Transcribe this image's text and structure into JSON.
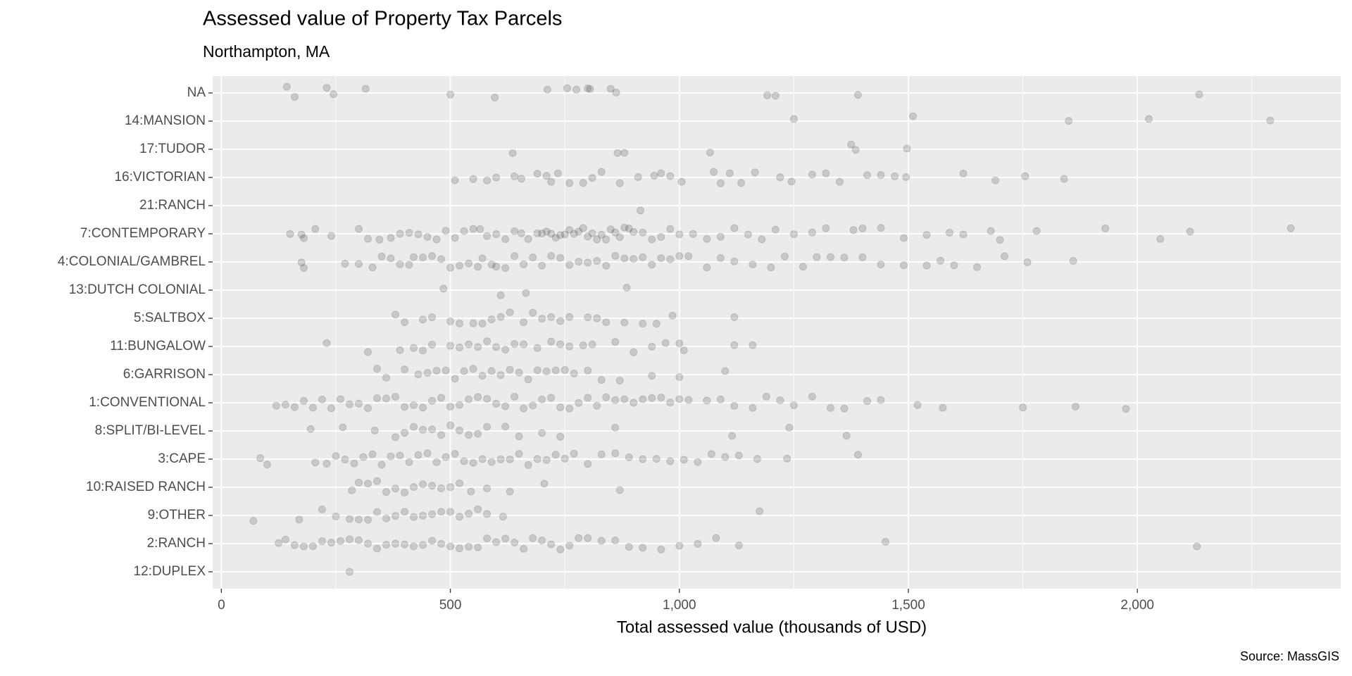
{
  "chart_data": {
    "type": "strip",
    "title": "Assessed value of Property Tax Parcels",
    "subtitle": "Northampton, MA",
    "x_label": "Total assessed value (thousands of USD)",
    "caption": "Source: MassGIS",
    "color": "#000000",
    "opacity": 0.15,
    "grid": true,
    "xlim": [
      -19,
      2444
    ],
    "xticks": [
      0,
      500,
      {
        "value": 1000,
        "label": "1,000"
      },
      {
        "value": 1500,
        "label": "1,500"
      },
      {
        "value": 2000,
        "label": "2,000"
      }
    ],
    "minor_xticks": [
      250,
      750,
      1250,
      1750,
      2250
    ],
    "categories": [
      "NA",
      "14:MANSION",
      "17:TUDOR",
      "16:VICTORIAN",
      "21:RANCH",
      "7:CONTEMPORARY",
      "4:COLONIAL/GAMBREL",
      "13:DUTCH COLONIAL",
      "5:SALTBOX",
      "11:BUNGALOW",
      "6:GARRISON",
      "1:CONVENTIONAL",
      "8:SPLIT/BI-LEVEL",
      "3:CAPE",
      "10:RAISED RANCH",
      "9:OTHER",
      "2:RANCH",
      "12:DUPLEX"
    ],
    "values": [
      [
        143,
        160,
        230,
        245,
        315,
        500,
        597,
        712,
        755,
        775,
        800,
        805,
        850,
        862,
        1192,
        1210,
        1390,
        2135
      ],
      [
        1250,
        1510,
        1850,
        2025,
        2290
      ],
      [
        636,
        865,
        880,
        1067,
        1375,
        1385,
        1497
      ],
      [
        510,
        550,
        580,
        600,
        640,
        655,
        690,
        710,
        720,
        735,
        760,
        790,
        810,
        830,
        870,
        910,
        945,
        960,
        980,
        1005,
        1075,
        1090,
        1110,
        1135,
        1165,
        1220,
        1245,
        1290,
        1320,
        1350,
        1410,
        1440,
        1470,
        1495,
        1620,
        1690,
        1755,
        1840
      ],
      [
        915
      ],
      [
        150,
        175,
        180,
        205,
        240,
        300,
        320,
        345,
        370,
        390,
        410,
        430,
        450,
        470,
        490,
        510,
        530,
        550,
        565,
        580,
        600,
        620,
        640,
        655,
        670,
        690,
        700,
        710,
        720,
        730,
        740,
        750,
        760,
        770,
        780,
        790,
        800,
        810,
        820,
        830,
        840,
        850,
        860,
        870,
        880,
        890,
        900,
        920,
        940,
        960,
        980,
        1000,
        1030,
        1060,
        1090,
        1120,
        1150,
        1180,
        1210,
        1250,
        1290,
        1320,
        1380,
        1400,
        1440,
        1490,
        1540,
        1590,
        1620,
        1680,
        1700,
        1780,
        1930,
        2050,
        2115,
        2335
      ],
      [
        175,
        180,
        270,
        300,
        330,
        350,
        370,
        390,
        410,
        420,
        440,
        460,
        480,
        500,
        520,
        540,
        560,
        570,
        590,
        600,
        620,
        640,
        660,
        680,
        700,
        720,
        740,
        760,
        780,
        800,
        820,
        840,
        860,
        880,
        900,
        920,
        940,
        960,
        980,
        1000,
        1020,
        1060,
        1090,
        1120,
        1160,
        1200,
        1230,
        1270,
        1300,
        1330,
        1360,
        1400,
        1440,
        1490,
        1540,
        1570,
        1600,
        1650,
        1710,
        1760,
        1860
      ],
      [
        485,
        610,
        665,
        885
      ],
      [
        380,
        400,
        440,
        460,
        500,
        520,
        550,
        570,
        590,
        610,
        630,
        660,
        680,
        700,
        720,
        740,
        760,
        800,
        820,
        840,
        880,
        920,
        950,
        985,
        1120
      ],
      [
        230,
        320,
        390,
        420,
        440,
        460,
        500,
        520,
        540,
        560,
        580,
        600,
        620,
        640,
        660,
        690,
        720,
        740,
        760,
        790,
        810,
        860,
        900,
        940,
        970,
        1000,
        1010,
        1120,
        1160
      ],
      [
        340,
        360,
        400,
        430,
        450,
        470,
        490,
        510,
        530,
        550,
        570,
        590,
        610,
        630,
        650,
        670,
        690,
        710,
        730,
        750,
        770,
        800,
        830,
        870,
        940,
        1000,
        1100
      ],
      [
        120,
        140,
        160,
        180,
        200,
        220,
        240,
        260,
        280,
        300,
        320,
        340,
        360,
        380,
        400,
        420,
        440,
        460,
        480,
        500,
        520,
        540,
        560,
        580,
        600,
        620,
        640,
        660,
        680,
        700,
        720,
        740,
        760,
        780,
        800,
        820,
        840,
        860,
        880,
        900,
        920,
        940,
        960,
        980,
        1000,
        1020,
        1060,
        1090,
        1120,
        1160,
        1190,
        1220,
        1250,
        1290,
        1330,
        1360,
        1410,
        1440,
        1520,
        1575,
        1750,
        1865,
        1975
      ],
      [
        195,
        265,
        335,
        380,
        400,
        420,
        440,
        460,
        480,
        500,
        520,
        540,
        560,
        580,
        620,
        650,
        700,
        740,
        860,
        1115,
        1240,
        1365
      ],
      [
        85,
        100,
        205,
        230,
        250,
        270,
        290,
        310,
        330,
        350,
        370,
        390,
        410,
        430,
        450,
        470,
        490,
        510,
        530,
        550,
        570,
        590,
        610,
        630,
        650,
        670,
        690,
        710,
        730,
        750,
        770,
        800,
        830,
        860,
        890,
        920,
        950,
        980,
        1010,
        1040,
        1070,
        1100,
        1130,
        1170,
        1235,
        1390
      ],
      [
        285,
        300,
        320,
        340,
        360,
        380,
        400,
        420,
        440,
        460,
        480,
        500,
        520,
        545,
        580,
        630,
        705,
        870
      ],
      [
        70,
        170,
        220,
        250,
        280,
        300,
        320,
        340,
        360,
        380,
        400,
        420,
        440,
        460,
        480,
        500,
        520,
        540,
        560,
        580,
        615,
        1175
      ],
      [
        125,
        140,
        160,
        180,
        200,
        220,
        240,
        260,
        280,
        300,
        320,
        340,
        360,
        380,
        400,
        420,
        440,
        460,
        480,
        500,
        520,
        540,
        560,
        580,
        600,
        620,
        640,
        660,
        680,
        700,
        720,
        740,
        760,
        780,
        800,
        830,
        860,
        890,
        920,
        960,
        1000,
        1040,
        1080,
        1130,
        1450,
        2130
      ],
      [
        280
      ]
    ]
  }
}
